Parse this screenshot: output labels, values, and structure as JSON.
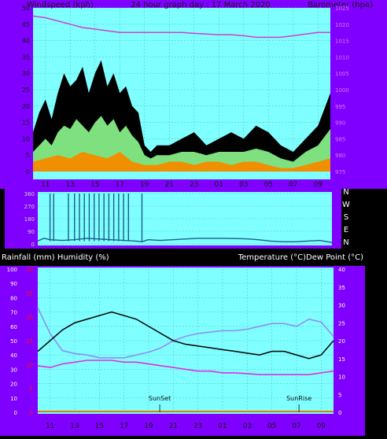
{
  "header": {
    "left": "Windspeed (kph)",
    "center": "24 hour graph day : 17 March 2020",
    "right": "Barometer (hpa)"
  },
  "legend2": {
    "left": "Rainfall (mm)  Humidity (%)",
    "right": "Temperature (°C)Dew Point (°C)"
  },
  "annotations": {
    "sunset": "SunSet",
    "sunrise": "SunRise"
  },
  "colors": {
    "panel_bg": "#7fffff",
    "frame": "#8000ff",
    "gust": "#000000",
    "wind_avg": "#7fe07f",
    "wind_dir_low": "#f09000",
    "barometer": "#d040d0",
    "direction": "#1a5c8a",
    "temperature": "#111111",
    "humidity": "#9090f0",
    "dewpoint": "#e030e0",
    "rain_axis": "#ff1010"
  },
  "chart_data": [
    {
      "type": "area",
      "title": "24 hour graph day : 17 March 2020",
      "ylabel_left": "Windspeed (kph)",
      "ylabel_right": "Barometer (hpa)",
      "x_ticks": [
        "11",
        "13",
        "15",
        "17",
        "19",
        "21",
        "23",
        "01",
        "03",
        "05",
        "07",
        "09"
      ],
      "y_left_ticks": [
        "0",
        "5",
        "10",
        "15",
        "20",
        "25",
        "30",
        "35",
        "40",
        "45",
        "50"
      ],
      "y_right_ticks": [
        "975",
        "980",
        "985",
        "990",
        "995",
        "1000",
        "1005",
        "1010",
        "1015",
        "1020",
        "1025"
      ],
      "ylim_left": [
        0,
        50
      ],
      "ylim_right": [
        975,
        1025
      ],
      "grid": true,
      "series": [
        {
          "name": "gust",
          "x": [
            10,
            10.5,
            11,
            11.5,
            12,
            12.5,
            13,
            13.5,
            14,
            14.5,
            15,
            15.5,
            16,
            16.5,
            17,
            17.5,
            18,
            18.5,
            19,
            19.5,
            20,
            21,
            22,
            23,
            24,
            25,
            26,
            27,
            28,
            29,
            30,
            31,
            32,
            33,
            34
          ],
          "values": [
            12,
            18,
            22,
            16,
            24,
            30,
            26,
            28,
            32,
            24,
            30,
            34,
            26,
            30,
            24,
            26,
            20,
            18,
            8,
            6,
            8,
            8,
            10,
            12,
            8,
            10,
            12,
            10,
            14,
            12,
            8,
            6,
            10,
            14,
            24
          ]
        },
        {
          "name": "average",
          "x": [
            10,
            10.5,
            11,
            11.5,
            12,
            12.5,
            13,
            13.5,
            14,
            14.5,
            15,
            15.5,
            16,
            16.5,
            17,
            17.5,
            18,
            18.5,
            19,
            19.5,
            20,
            21,
            22,
            23,
            24,
            25,
            26,
            27,
            28,
            29,
            30,
            31,
            32,
            33,
            34
          ],
          "values": [
            6,
            8,
            10,
            8,
            12,
            14,
            13,
            16,
            14,
            12,
            15,
            17,
            14,
            16,
            12,
            14,
            11,
            9,
            5,
            4,
            5,
            5,
            6,
            6,
            5,
            6,
            6,
            6,
            7,
            6,
            4,
            3,
            6,
            8,
            13
          ]
        },
        {
          "name": "low",
          "x": [
            10,
            11,
            12,
            13,
            14,
            15,
            16,
            17,
            18,
            19,
            20,
            21,
            22,
            23,
            24,
            25,
            26,
            27,
            28,
            29,
            30,
            31,
            32,
            33,
            34
          ],
          "values": [
            3,
            4,
            5,
            4,
            6,
            5,
            4,
            6,
            3,
            2,
            2,
            3,
            3,
            2,
            3,
            3,
            2,
            3,
            3,
            2,
            1,
            1,
            2,
            3,
            4
          ]
        },
        {
          "name": "barometer",
          "x": [
            10,
            11,
            12,
            13,
            14,
            15,
            16,
            17,
            18,
            19,
            20,
            21,
            22,
            23,
            24,
            25,
            26,
            27,
            28,
            29,
            30,
            31,
            32,
            33,
            34
          ],
          "values": [
            1022.5,
            1022,
            1021,
            1020,
            1019,
            1018.5,
            1018,
            1017.5,
            1017.5,
            1017.5,
            1017.5,
            1017.5,
            1017.5,
            1017.2,
            1017,
            1016.8,
            1016.8,
            1016.5,
            1016,
            1016,
            1016,
            1016.5,
            1017,
            1017.5,
            1017.5
          ]
        }
      ]
    },
    {
      "type": "line",
      "ylabel_right": [
        "N",
        "W",
        "S",
        "E",
        "N"
      ],
      "y_ticks": [
        "0",
        "90",
        "180",
        "270",
        "360"
      ],
      "ylim": [
        0,
        360
      ],
      "x": [
        10,
        10.5,
        11,
        12,
        13,
        14,
        15,
        16,
        17,
        18,
        18.5,
        19,
        20,
        21,
        22,
        23,
        24,
        25,
        26,
        27,
        28,
        29,
        30,
        31,
        32,
        33,
        34
      ],
      "values": [
        20,
        40,
        30,
        25,
        30,
        40,
        35,
        30,
        25,
        20,
        15,
        30,
        25,
        30,
        35,
        40,
        40,
        40,
        38,
        36,
        30,
        20,
        15,
        15,
        20,
        25,
        10
      ],
      "spikes_x": [
        11,
        11.3,
        12.5,
        13,
        13.4,
        13.8,
        14.2,
        14.6,
        15,
        15.4,
        15.8,
        16.2,
        16.6,
        17,
        17.4,
        18.5
      ]
    },
    {
      "type": "line",
      "ylabel_left": "Rainfall (mm)  Humidity (%)",
      "ylabel_right": "Temperature (°C)Dew Point (°C)",
      "x_ticks": [
        "11",
        "13",
        "15",
        "17",
        "19",
        "21",
        "23",
        "01",
        "03",
        "05",
        "07",
        "09"
      ],
      "y_humidity_ticks": [
        "0",
        "10",
        "20",
        "30",
        "40",
        "50",
        "60",
        "70",
        "80",
        "90",
        "100"
      ],
      "y_rain_ticks": [
        "0",
        "5",
        "10",
        "15",
        "20",
        "25",
        "30"
      ],
      "y_temp_ticks": [
        "0",
        "5",
        "10",
        "15",
        "20",
        "25",
        "30",
        "35",
        "40"
      ],
      "ylim_humidity": [
        0,
        100
      ],
      "ylim_rain": [
        0,
        30
      ],
      "ylim_temp": [
        0,
        40
      ],
      "grid": true,
      "series": [
        {
          "name": "Temperature",
          "x": [
            10,
            11,
            12,
            13,
            14,
            15,
            16,
            17,
            18,
            19,
            20,
            21,
            22,
            23,
            24,
            25,
            26,
            27,
            28,
            29,
            30,
            31,
            32,
            33,
            34
          ],
          "values": [
            17,
            20,
            23,
            25,
            26,
            27,
            28,
            27,
            26,
            24,
            22,
            20,
            19,
            18.5,
            18,
            17.5,
            17,
            16.5,
            16,
            17,
            17,
            16,
            15,
            16,
            20
          ]
        },
        {
          "name": "Humidity",
          "x": [
            10,
            11,
            12,
            13,
            14,
            15,
            16,
            17,
            18,
            19,
            20,
            21,
            22,
            23,
            24,
            25,
            26,
            27,
            28,
            29,
            30,
            31,
            32,
            33,
            34
          ],
          "values": [
            73,
            55,
            43,
            41,
            40,
            38,
            38,
            38,
            40,
            42,
            45,
            50,
            53,
            55,
            56,
            57,
            57,
            58,
            60,
            62,
            62,
            60,
            65,
            63,
            53
          ]
        },
        {
          "name": "Dew Point",
          "x": [
            10,
            11,
            12,
            13,
            14,
            15,
            16,
            17,
            18,
            19,
            20,
            21,
            22,
            23,
            24,
            25,
            26,
            27,
            28,
            29,
            30,
            31,
            32,
            33,
            34
          ],
          "values": [
            13,
            12.5,
            13.5,
            14,
            14.5,
            14.5,
            14.5,
            14,
            14,
            13.5,
            13,
            12.5,
            12,
            11.5,
            11.5,
            11,
            11,
            10.8,
            10.5,
            10.5,
            10.5,
            10.5,
            10.5,
            11,
            11.5
          ]
        },
        {
          "name": "Rainfall",
          "x": [
            10,
            34
          ],
          "values": [
            0,
            0
          ]
        }
      ]
    }
  ]
}
